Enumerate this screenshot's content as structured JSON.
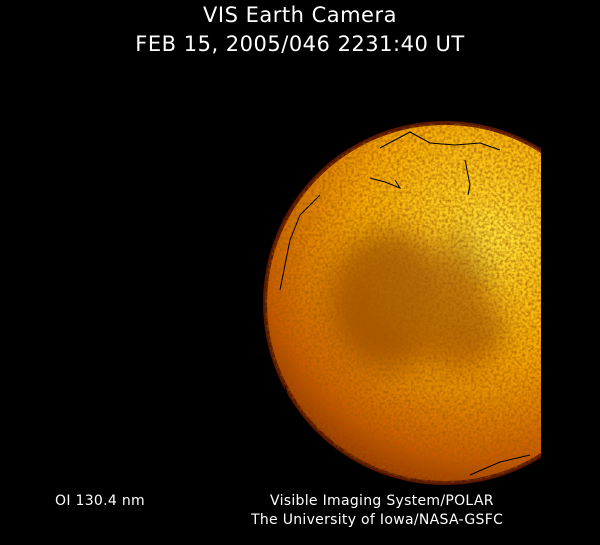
{
  "header": {
    "title": "VIS Earth Camera",
    "timestamp": "FEB 15, 2005/046 2231:40 UT"
  },
  "image": {
    "subject": "earth-disc-uv-image",
    "colors": {
      "background": "#000000",
      "bright": "#ffd21a",
      "mid": "#e08a00",
      "dark": "#6a1e00"
    }
  },
  "footer": {
    "band": "OI  130.4 nm",
    "credit_line1": "Visible Imaging System/POLAR",
    "credit_line2": "The University of Iowa/NASA-GSFC"
  }
}
